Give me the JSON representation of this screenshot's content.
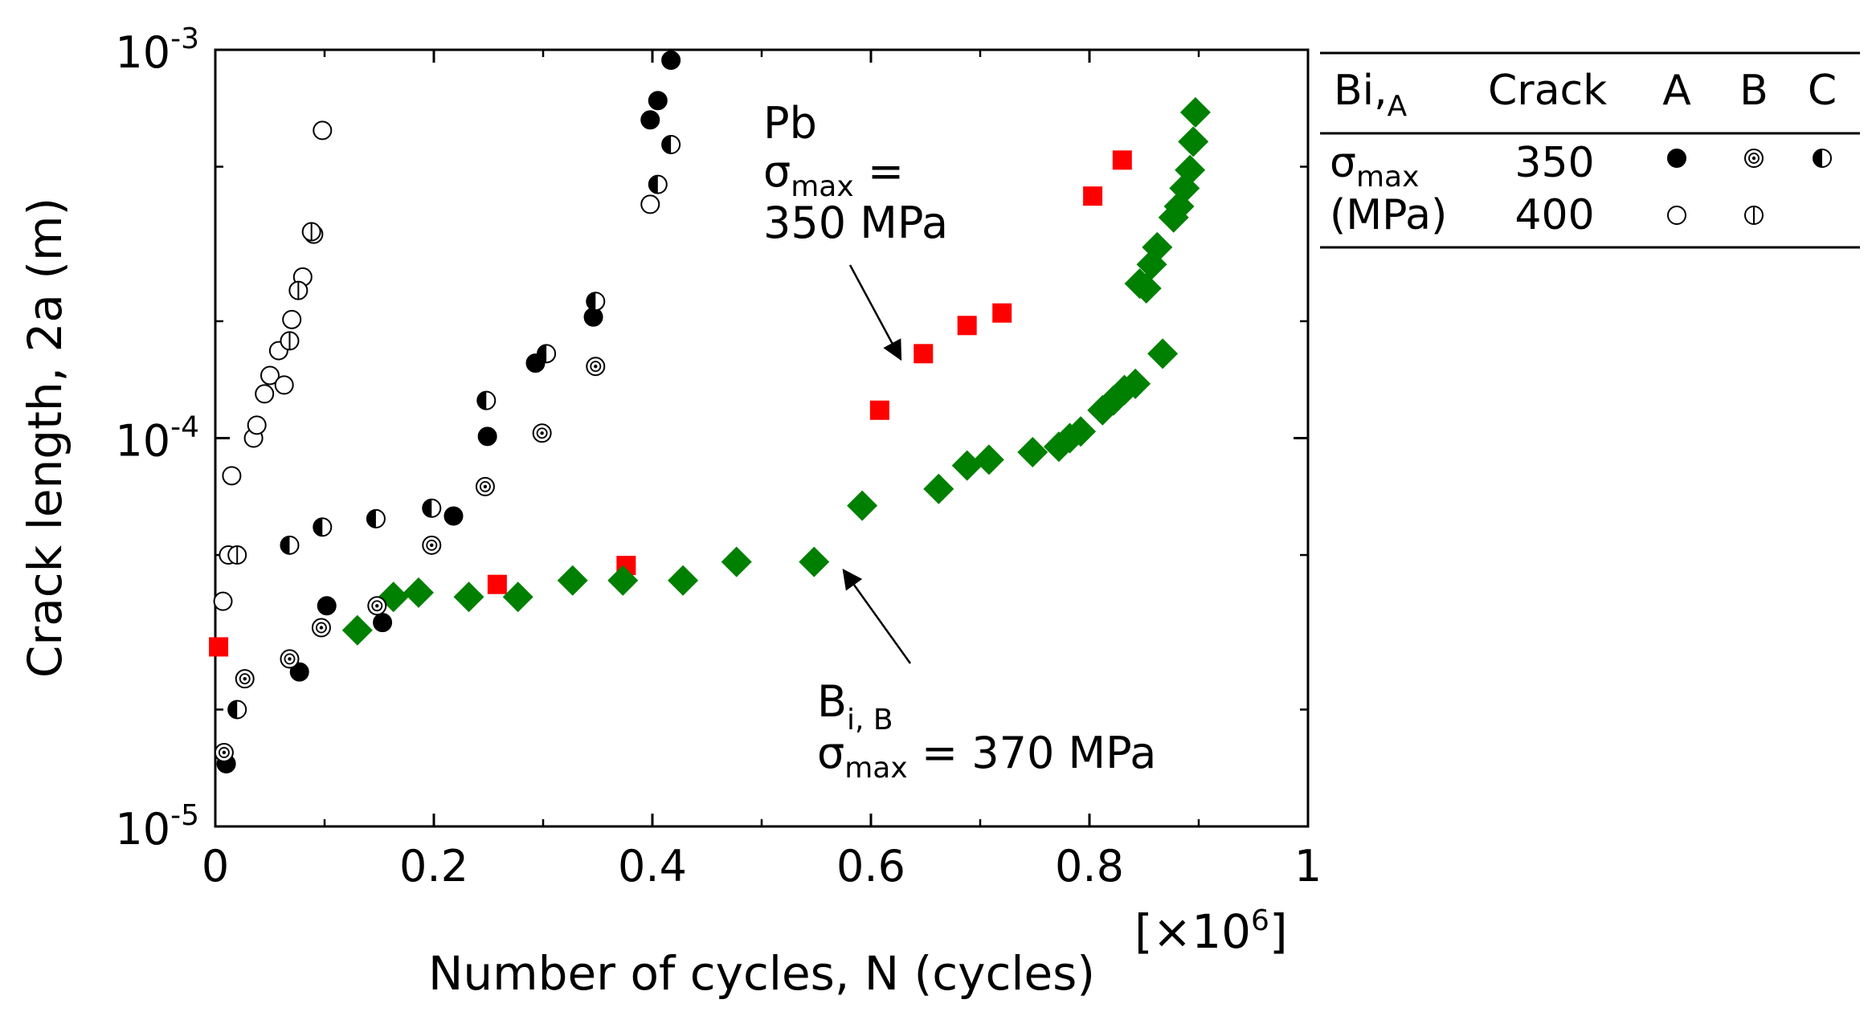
{
  "chart_data": {
    "type": "scatter",
    "xlabel": "Number of cycles, N (cycles)",
    "x_multiplier_label": "[×10",
    "x_multiplier_exp": "6",
    "x_multiplier_close": "]",
    "ylabel": "Crack length, 2a (m)",
    "xlim": [
      0,
      1
    ],
    "ylim": [
      1e-05,
      0.001
    ],
    "yscale": "log",
    "x_ticks": [
      {
        "value": 0,
        "label": "0"
      },
      {
        "value": 0.2,
        "label": "0.2"
      },
      {
        "value": 0.4,
        "label": "0.4"
      },
      {
        "value": 0.6,
        "label": "0.6"
      },
      {
        "value": 0.8,
        "label": "0.8"
      },
      {
        "value": 1,
        "label": "1"
      }
    ],
    "y_ticks": [
      {
        "value": 1e-05,
        "base": "10",
        "exp": "-5"
      },
      {
        "value": 0.0001,
        "base": "10",
        "exp": "-4"
      },
      {
        "value": 0.001,
        "base": "10",
        "exp": "-3"
      }
    ],
    "annotations": {
      "pb_label": "Pb",
      "pb_sigma": "σ",
      "pb_sub": "max",
      "pb_eq": " =",
      "pb_value": "350 MPa",
      "bi_label": "B",
      "bi_sub": "i, B",
      "bi_sigma": "σ",
      "bi_sigma_sub": "max",
      "bi_value": " = 370 MPa"
    },
    "legend": {
      "header_bi": "Bi",
      "header_bi_sub": "A",
      "header_bi_comma": ",",
      "header_crack": "Crack",
      "header_a": "A",
      "header_b": "B",
      "header_c": "C",
      "sigma_label": "σ",
      "sigma_sub": "max",
      "unit_label": "(MPa)",
      "row1_value": "350",
      "row2_value": "400"
    },
    "colors": {
      "pb": "#ff0000",
      "bi_b_370": "#008000",
      "black": "#000000"
    },
    "series": [
      {
        "name": "Bi_A 350 Crack A",
        "marker": "filled-circle",
        "x": [
          0.01,
          0.077,
          0.102,
          0.153,
          0.218,
          0.249,
          0.293,
          0.346,
          0.398,
          0.405,
          0.417
        ],
        "y": [
          1.45e-05,
          2.5e-05,
          3.7e-05,
          3.35e-05,
          6.3e-05,
          0.000101,
          0.000156,
          0.000205,
          0.00066,
          0.00074,
          0.00094
        ]
      },
      {
        "name": "Bi_A 350 Crack B",
        "marker": "dotted-circle",
        "x": [
          0.008,
          0.027,
          0.068,
          0.097,
          0.148,
          0.198,
          0.247,
          0.299,
          0.348
        ],
        "y": [
          1.55e-05,
          2.4e-05,
          2.7e-05,
          3.25e-05,
          3.7e-05,
          5.3e-05,
          7.5e-05,
          0.000103,
          0.000153
        ]
      },
      {
        "name": "Bi_A 350 Crack C",
        "marker": "half-circle",
        "x": [
          0.02,
          0.068,
          0.098,
          0.147,
          0.198,
          0.248,
          0.303,
          0.348,
          0.405,
          0.417
        ],
        "y": [
          2e-05,
          5.3e-05,
          5.9e-05,
          6.2e-05,
          6.6e-05,
          0.000125,
          0.000165,
          0.000225,
          0.00045,
          0.00057
        ]
      },
      {
        "name": "Bi_A 400 Crack A",
        "marker": "open-circle",
        "x": [
          0.007,
          0.012,
          0.015,
          0.035,
          0.038,
          0.045,
          0.05,
          0.058,
          0.063,
          0.07,
          0.08,
          0.09,
          0.098,
          0.398
        ],
        "y": [
          3.8e-05,
          5e-05,
          8e-05,
          0.0001,
          0.000108,
          0.00013,
          0.000145,
          0.000168,
          0.000137,
          0.000202,
          0.00026,
          0.000335,
          0.00062,
          0.0004
        ]
      },
      {
        "name": "Bi_A 400 Crack B",
        "marker": "vertical-split-circle",
        "x": [
          0.02,
          0.068,
          0.076,
          0.088
        ],
        "y": [
          5e-05,
          0.000178,
          0.00024,
          0.00034
        ]
      },
      {
        "name": "Pb 350 MPa",
        "marker": "square",
        "color": "#ff0000",
        "x": [
          0.003,
          0.258,
          0.376,
          0.608,
          0.648,
          0.688,
          0.72,
          0.803,
          0.83
        ],
        "y": [
          2.9e-05,
          4.2e-05,
          4.7e-05,
          0.000118,
          0.000165,
          0.000195,
          0.00021,
          0.00042,
          0.00052
        ]
      },
      {
        "name": "Bi_B 370 MPa",
        "marker": "diamond",
        "color": "#008000",
        "x": [
          0.13,
          0.163,
          0.186,
          0.232,
          0.277,
          0.327,
          0.373,
          0.428,
          0.477,
          0.548,
          0.592,
          0.662,
          0.688,
          0.708,
          0.748,
          0.772,
          0.782,
          0.792,
          0.812,
          0.822,
          0.832,
          0.842,
          0.846,
          0.852,
          0.857,
          0.862,
          0.867,
          0.877,
          0.882,
          0.887,
          0.892,
          0.895,
          0.897
        ],
        "y": [
          3.2e-05,
          3.9e-05,
          4e-05,
          3.9e-05,
          3.9e-05,
          4.3e-05,
          4.3e-05,
          4.3e-05,
          4.8e-05,
          4.8e-05,
          6.7e-05,
          7.4e-05,
          8.5e-05,
          8.8e-05,
          9.2e-05,
          9.5e-05,
          0.0001,
          0.000104,
          0.000118,
          0.000125,
          0.000133,
          0.000138,
          0.00025,
          0.000243,
          0.00028,
          0.00031,
          0.000165,
          0.00037,
          0.000395,
          0.00044,
          0.00049,
          0.00058,
          0.00069
        ]
      }
    ]
  }
}
